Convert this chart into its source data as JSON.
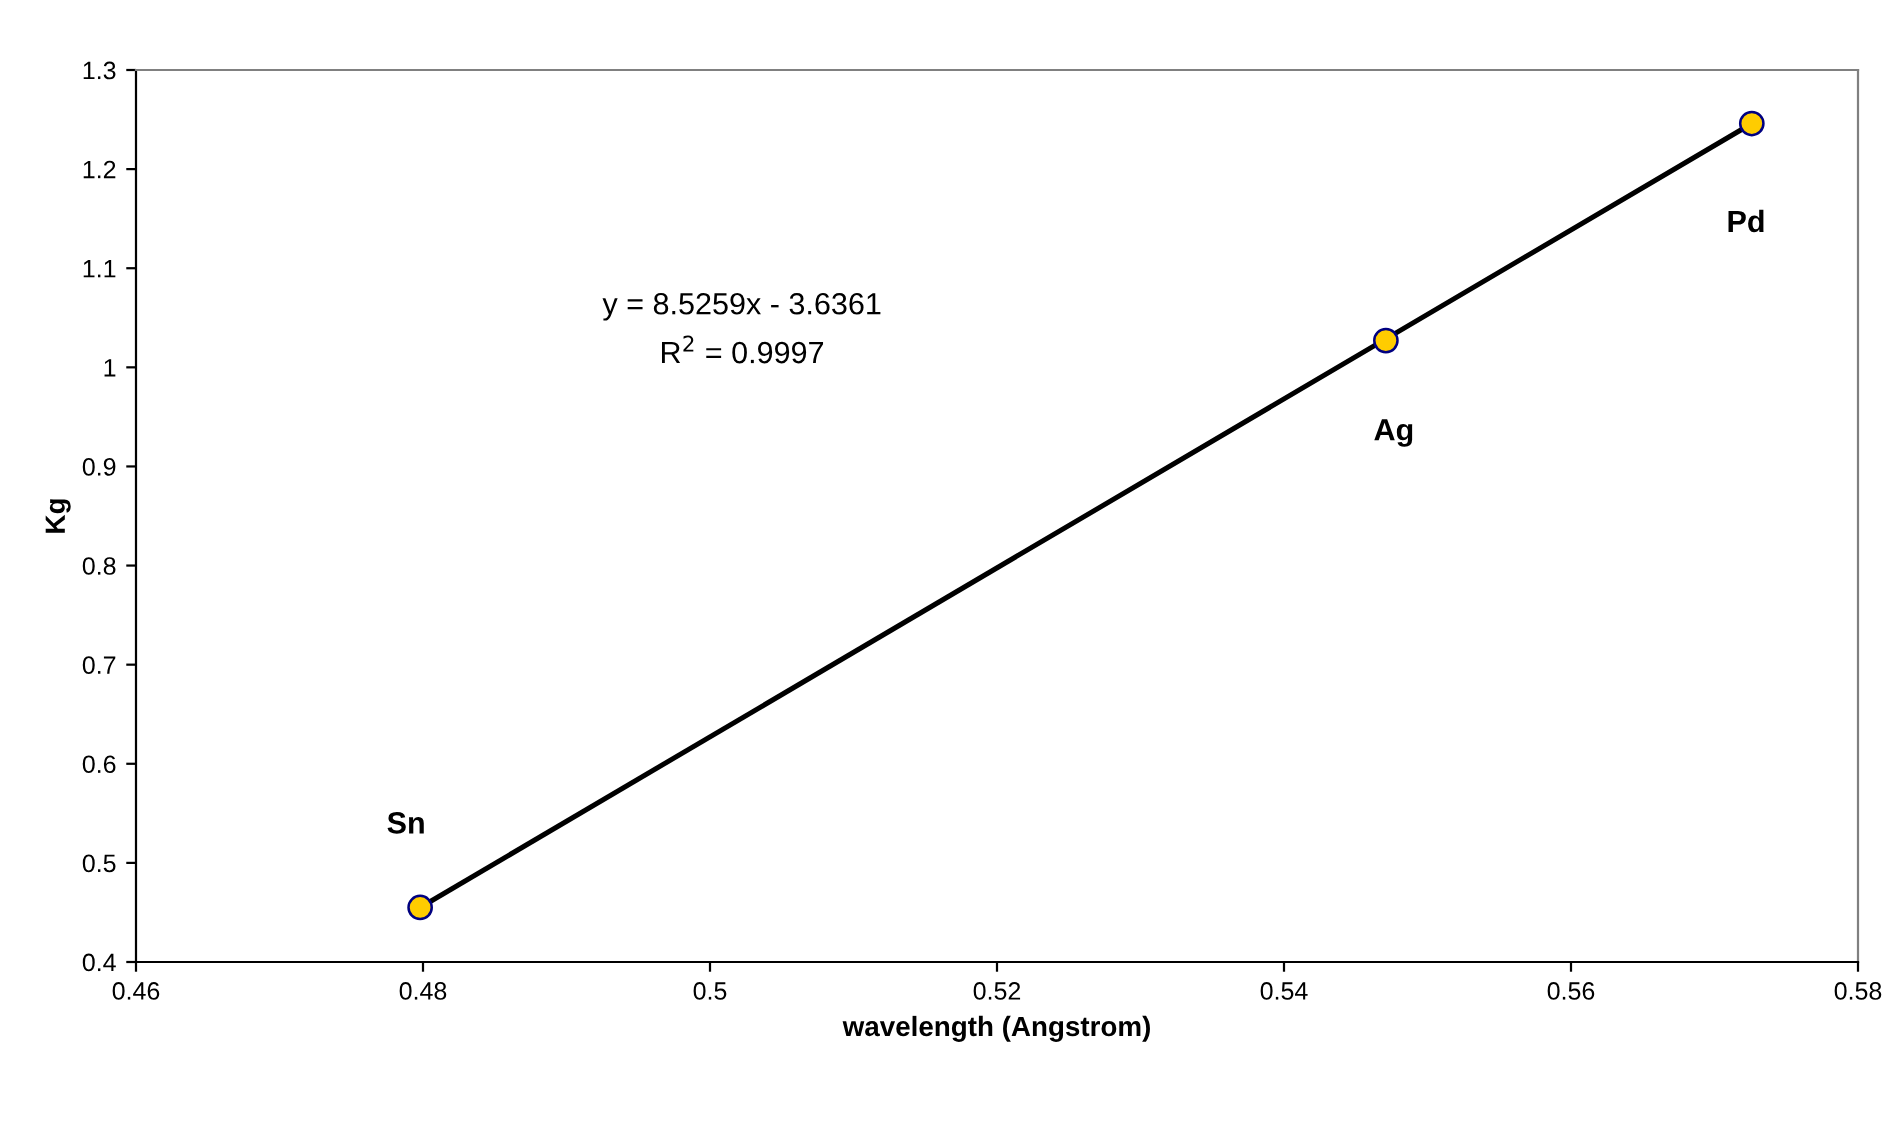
{
  "chart_data": {
    "type": "scatter",
    "xlabel": "wavelength (Angstrom)",
    "ylabel": "Kg",
    "series": [
      {
        "color": "#ffcc00",
        "marker": "circle",
        "x": [
          0.4798,
          0.5471,
          0.5726
        ],
        "values": [
          0.455,
          1.027,
          1.246
        ]
      },
      {
        "type": "line",
        "marker": "none",
        "color": "#000000",
        "x": [
          0.4798,
          0.5726
        ],
        "values": [
          0.455,
          1.246
        ]
      }
    ],
    "annotations": [
      {
        "text": "Sn",
        "x": 0.4798,
        "y": 0.455
      },
      {
        "text": "Ag",
        "x": 0.5471,
        "y": 1.027
      },
      "Pd",
      "y = 8.5259x - 3.6361",
      "R$^{2}$ = 0.9997"
    ],
    "xlim": [
      0.46,
      0.58
    ],
    "xticks": [
      0.46,
      0.48,
      0.5,
      0.52,
      0.54,
      0.56,
      0.58
    ],
    "ylim": [
      0.4,
      1.3
    ],
    "yticks": [
      0.4,
      0.5,
      0.6,
      0.7,
      0.8,
      0.9,
      1,
      1.1,
      1.2,
      1.3
    ],
    "grid": false
  }
}
